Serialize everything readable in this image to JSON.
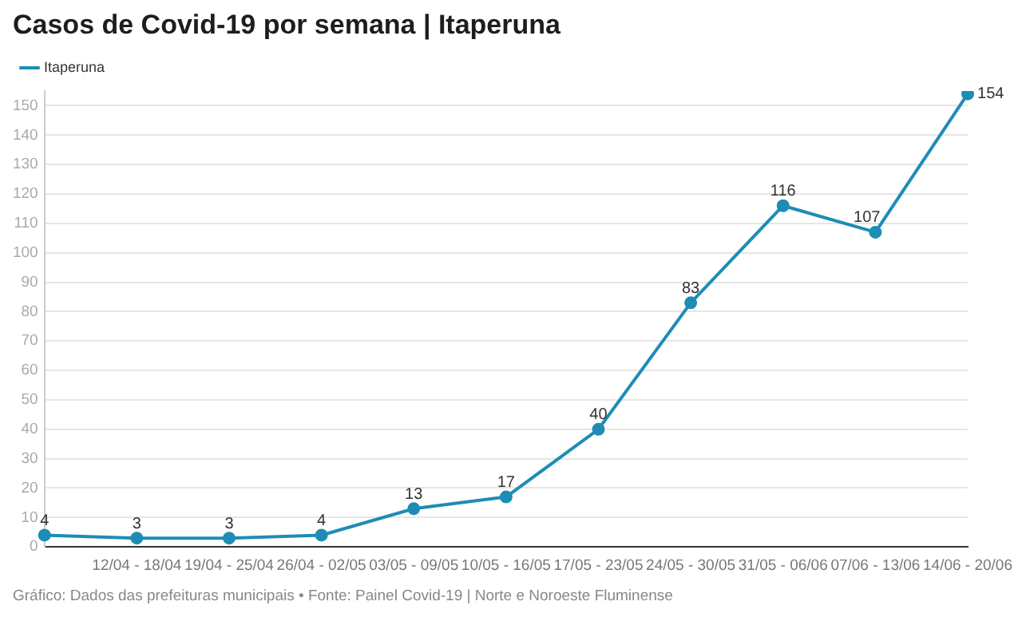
{
  "chart_data": {
    "type": "line",
    "title": "Casos de Covid-19 por semana | Itaperuna",
    "categories": [
      null,
      "12/04 - 18/04",
      "19/04 - 25/04",
      "26/04 - 02/05",
      "03/05 - 09/05",
      "10/05 - 16/05",
      "17/05 - 23/05",
      "24/05 - 30/05",
      "31/05 - 06/06",
      "07/06 - 13/06",
      "14/06 - 20/06"
    ],
    "series": [
      {
        "name": "Itaperuna",
        "color": "#1d8db5",
        "values": [
          4,
          3,
          3,
          4,
          13,
          17,
          40,
          83,
          116,
          107,
          154
        ]
      }
    ],
    "ylim": [
      0,
      155
    ],
    "yticks": [
      0,
      10,
      20,
      30,
      40,
      50,
      60,
      70,
      80,
      90,
      100,
      110,
      120,
      130,
      140,
      150
    ],
    "grid": "y",
    "legend": "top left",
    "marker": "circle",
    "line_style": "solid",
    "data_labels": true,
    "annotations": [
      "Gráfico: Dados das prefeituras municipais • Fonte: Painel Covid-19 | Norte e Noroeste Fluminense"
    ]
  }
}
